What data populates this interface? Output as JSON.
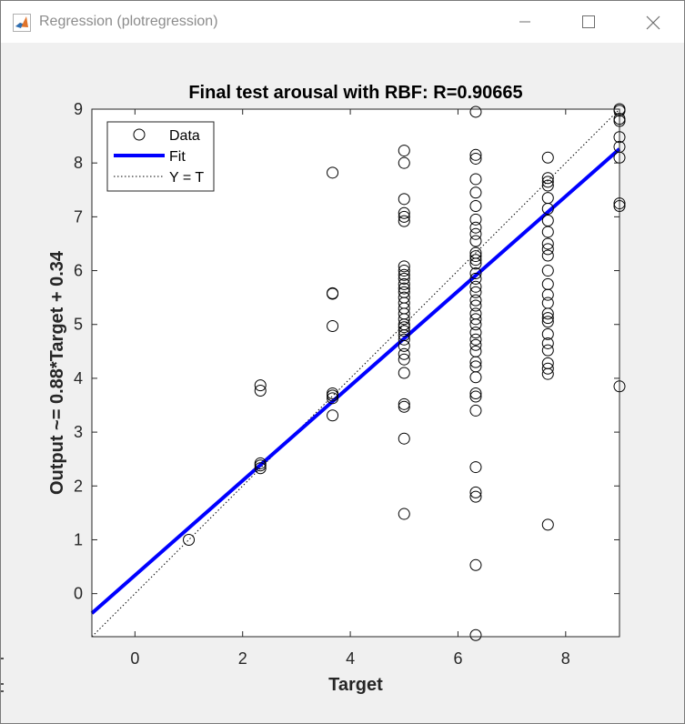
{
  "window": {
    "title": "Regression (plotregression)",
    "minimize_glyph": "minimize-icon",
    "maximize_glyph": "maximize-icon",
    "close_glyph": "close-icon"
  },
  "chart_data": {
    "type": "scatter",
    "title": "Final test arousal with RBF: R=0.90665",
    "xlabel": "Target",
    "ylabel": "Output ~= 0.88*Target + 0.34",
    "xlim": [
      -0.8,
      9
    ],
    "ylim": [
      -0.8,
      9
    ],
    "xticks": [
      0,
      2,
      4,
      6,
      8
    ],
    "yticks": [
      0,
      1,
      2,
      3,
      4,
      5,
      6,
      7,
      8,
      9
    ],
    "grid": false,
    "legend_position": "top-left",
    "legend": [
      "Data",
      "Fit",
      "Y = T"
    ],
    "colors": {
      "data": "#000000",
      "fit": "#0000ff",
      "identity": "#000000"
    },
    "fit": {
      "slope": 0.88,
      "intercept": 0.34
    },
    "series": [
      {
        "name": "Data",
        "points": [
          [
            1.0,
            1.0
          ],
          [
            2.33,
            3.87
          ],
          [
            2.33,
            3.77
          ],
          [
            2.33,
            2.42
          ],
          [
            2.33,
            2.38
          ],
          [
            2.33,
            2.33
          ],
          [
            3.67,
            7.82
          ],
          [
            3.67,
            5.58
          ],
          [
            3.67,
            5.57
          ],
          [
            3.67,
            4.97
          ],
          [
            3.67,
            3.72
          ],
          [
            3.67,
            3.68
          ],
          [
            3.67,
            3.63
          ],
          [
            3.67,
            3.31
          ],
          [
            5.0,
            8.23
          ],
          [
            5.0,
            8.0
          ],
          [
            5.0,
            7.33
          ],
          [
            5.0,
            7.07
          ],
          [
            5.0,
            7.0
          ],
          [
            5.0,
            6.92
          ],
          [
            5.0,
            6.08
          ],
          [
            5.0,
            6.0
          ],
          [
            5.0,
            5.92
          ],
          [
            5.0,
            5.85
          ],
          [
            5.0,
            5.75
          ],
          [
            5.0,
            5.67
          ],
          [
            5.0,
            5.6
          ],
          [
            5.0,
            5.5
          ],
          [
            5.0,
            5.4
          ],
          [
            5.0,
            5.3
          ],
          [
            5.0,
            5.2
          ],
          [
            5.0,
            5.1
          ],
          [
            5.0,
            5.0
          ],
          [
            5.0,
            4.95
          ],
          [
            5.0,
            4.88
          ],
          [
            5.0,
            4.8
          ],
          [
            5.0,
            4.72
          ],
          [
            5.0,
            4.6
          ],
          [
            5.0,
            4.45
          ],
          [
            5.0,
            4.35
          ],
          [
            5.0,
            4.1
          ],
          [
            5.0,
            3.52
          ],
          [
            5.0,
            3.47
          ],
          [
            5.0,
            2.88
          ],
          [
            5.0,
            1.48
          ],
          [
            6.33,
            8.95
          ],
          [
            6.33,
            8.15
          ],
          [
            6.33,
            8.08
          ],
          [
            6.33,
            7.7
          ],
          [
            6.33,
            7.45
          ],
          [
            6.33,
            7.2
          ],
          [
            6.33,
            6.95
          ],
          [
            6.33,
            6.8
          ],
          [
            6.33,
            6.68
          ],
          [
            6.33,
            6.55
          ],
          [
            6.33,
            6.33
          ],
          [
            6.33,
            6.27
          ],
          [
            6.33,
            6.2
          ],
          [
            6.33,
            6.13
          ],
          [
            6.33,
            5.95
          ],
          [
            6.33,
            5.85
          ],
          [
            6.33,
            5.7
          ],
          [
            6.33,
            5.6
          ],
          [
            6.33,
            5.45
          ],
          [
            6.33,
            5.35
          ],
          [
            6.33,
            5.2
          ],
          [
            6.33,
            5.1
          ],
          [
            6.33,
            5.0
          ],
          [
            6.33,
            4.85
          ],
          [
            6.33,
            4.72
          ],
          [
            6.33,
            4.62
          ],
          [
            6.33,
            4.5
          ],
          [
            6.33,
            4.3
          ],
          [
            6.33,
            4.22
          ],
          [
            6.33,
            4.02
          ],
          [
            6.33,
            3.72
          ],
          [
            6.33,
            3.66
          ],
          [
            6.33,
            3.4
          ],
          [
            6.33,
            2.35
          ],
          [
            6.33,
            1.88
          ],
          [
            6.33,
            1.8
          ],
          [
            6.33,
            0.53
          ],
          [
            6.33,
            -0.77
          ],
          [
            7.67,
            8.1
          ],
          [
            7.67,
            7.72
          ],
          [
            7.67,
            7.65
          ],
          [
            7.67,
            7.58
          ],
          [
            7.67,
            7.35
          ],
          [
            7.67,
            7.15
          ],
          [
            7.67,
            6.93
          ],
          [
            7.67,
            6.72
          ],
          [
            7.67,
            6.5
          ],
          [
            7.67,
            6.4
          ],
          [
            7.67,
            6.28
          ],
          [
            7.67,
            6.0
          ],
          [
            7.67,
            5.75
          ],
          [
            7.67,
            5.55
          ],
          [
            7.67,
            5.4
          ],
          [
            7.67,
            5.2
          ],
          [
            7.67,
            5.12
          ],
          [
            7.67,
            5.05
          ],
          [
            7.67,
            4.82
          ],
          [
            7.67,
            4.65
          ],
          [
            7.67,
            4.52
          ],
          [
            7.67,
            4.28
          ],
          [
            7.67,
            4.18
          ],
          [
            7.67,
            4.08
          ],
          [
            7.67,
            1.28
          ],
          [
            9.0,
            9.0
          ],
          [
            9.0,
            8.97
          ],
          [
            9.0,
            8.82
          ],
          [
            9.0,
            8.78
          ],
          [
            9.0,
            8.48
          ],
          [
            9.0,
            8.3
          ],
          [
            9.0,
            8.1
          ],
          [
            9.0,
            7.25
          ],
          [
            9.0,
            7.2
          ],
          [
            9.0,
            3.85
          ]
        ]
      }
    ]
  }
}
